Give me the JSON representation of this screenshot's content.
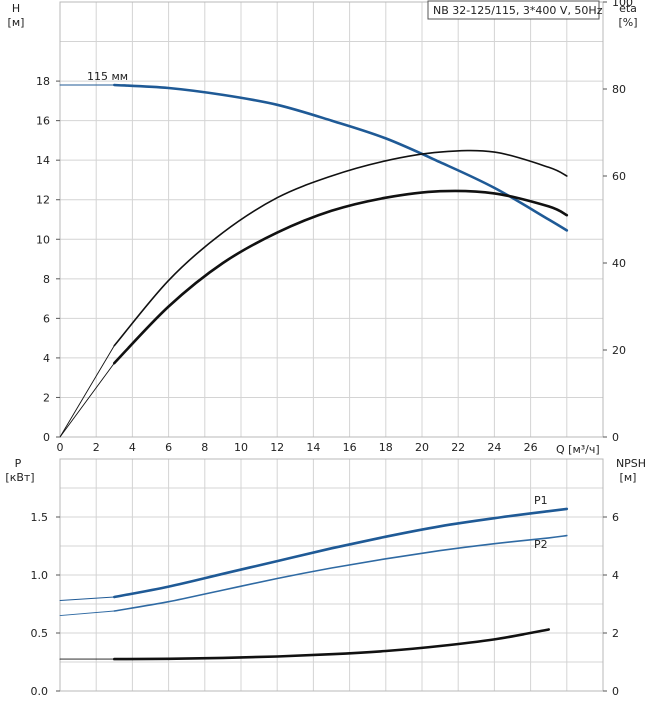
{
  "header": {
    "title_box": "NB 32-125/115, 3*400 V, 50Hz"
  },
  "top_chart": {
    "left_axis": {
      "name": "H",
      "unit": "[м]"
    },
    "right_axis": {
      "name": "eta",
      "unit": "[%]"
    }
  },
  "bottom_chart": {
    "left_axis": {
      "name": "P",
      "unit": "[кВт]"
    },
    "right_axis": {
      "name": "NPSH",
      "unit": "[м]"
    }
  },
  "shared_x_axis": {
    "label": "Q [м³/ч]"
  },
  "colors": {
    "head_curve": "#1f5a96",
    "p1_curve": "#1f5a96",
    "p2_curve": "#2f6aa3",
    "eta_curve": "#111111",
    "npsh_curve": "#111111",
    "grid": "#d4d4d4",
    "frame": "#b8b8b8",
    "series_label": "#1f5a96"
  },
  "chart_data": [
    {
      "type": "line",
      "panel": "top",
      "title": "",
      "xlabel": "Q [м³/ч]",
      "ylabel": "H [м]",
      "y2label": "eta [%]",
      "xlim": [
        0,
        30
      ],
      "ylim": [
        0,
        22
      ],
      "y2lim": [
        0,
        100
      ],
      "x_ticks": [
        0,
        2,
        4,
        6,
        8,
        10,
        12,
        14,
        16,
        18,
        20,
        22,
        24,
        26
      ],
      "y_ticks": [
        0,
        2,
        4,
        6,
        8,
        10,
        12,
        14,
        16,
        18
      ],
      "y2_ticks": [
        0,
        20,
        40,
        60,
        80,
        100
      ],
      "grid": true,
      "annotations": [
        {
          "text": "115 мм"
        }
      ],
      "series": [
        {
          "axis": "left",
          "style": "thin",
          "color_key": "head_curve",
          "x": [
            0,
            3
          ],
          "y": [
            17.8,
            17.8
          ]
        },
        {
          "name": "115 мм",
          "axis": "left",
          "style": "bold",
          "color_key": "head_curve",
          "x": [
            3,
            6,
            9,
            12,
            15,
            18,
            21,
            24,
            27,
            28
          ],
          "y": [
            17.8,
            17.65,
            17.3,
            16.8,
            16.0,
            15.1,
            13.9,
            12.6,
            11.0,
            10.45
          ]
        },
        {
          "axis": "right",
          "style": "medium",
          "color_key": "eta_curve",
          "x": [
            3,
            6,
            9,
            12,
            15,
            18,
            21,
            24,
            27,
            28
          ],
          "y": [
            21,
            36,
            47,
            55,
            60,
            63.5,
            65.5,
            65.5,
            62,
            60
          ]
        },
        {
          "axis": "right",
          "style": "thin",
          "color_key": "eta_curve",
          "x": [
            0,
            3
          ],
          "y": [
            0,
            21
          ]
        },
        {
          "axis": "right",
          "style": "bold",
          "color_key": "eta_curve",
          "x": [
            3,
            6,
            9,
            12,
            15,
            18,
            21,
            24,
            27,
            28
          ],
          "y": [
            17,
            30,
            40,
            47,
            52,
            55,
            56.5,
            56,
            53,
            51
          ]
        },
        {
          "axis": "right",
          "style": "thin",
          "color_key": "eta_curve",
          "x": [
            0,
            3
          ],
          "y": [
            0,
            17
          ]
        }
      ]
    },
    {
      "type": "line",
      "panel": "bottom",
      "title": "",
      "xlabel": "Q [м³/ч]",
      "ylabel": "P [кВт]",
      "y2label": "NPSH [м]",
      "xlim": [
        0,
        30
      ],
      "ylim": [
        0,
        2.0
      ],
      "y2lim": [
        0,
        8
      ],
      "y_ticks": [
        0.0,
        0.5,
        1.0,
        1.5
      ],
      "y_tick_labels": [
        "0.0",
        "0.5",
        "1.0",
        "1.5"
      ],
      "y2_ticks": [
        0,
        2,
        4,
        6
      ],
      "grid": true,
      "series": [
        {
          "axis": "left",
          "style": "thin",
          "color_key": "p1_curve",
          "x": [
            0,
            3
          ],
          "y": [
            0.78,
            0.81
          ]
        },
        {
          "name": "P1",
          "axis": "left",
          "style": "bold",
          "color_key": "p1_curve",
          "x": [
            3,
            6,
            9,
            12,
            15,
            18,
            21,
            24,
            27,
            28
          ],
          "y": [
            0.81,
            0.9,
            1.01,
            1.12,
            1.23,
            1.33,
            1.42,
            1.49,
            1.55,
            1.57
          ]
        },
        {
          "axis": "left",
          "style": "thin",
          "color_key": "p2_curve",
          "x": [
            0,
            3
          ],
          "y": [
            0.65,
            0.69
          ]
        },
        {
          "name": "P2",
          "axis": "left",
          "style": "medium",
          "color_key": "p2_curve",
          "x": [
            3,
            6,
            9,
            12,
            15,
            18,
            21,
            24,
            27,
            28
          ],
          "y": [
            0.69,
            0.77,
            0.87,
            0.97,
            1.06,
            1.14,
            1.21,
            1.27,
            1.32,
            1.34
          ]
        },
        {
          "axis": "right",
          "style": "thin",
          "color_key": "npsh_curve",
          "x": [
            0,
            3
          ],
          "y": [
            1.1,
            1.1
          ]
        },
        {
          "axis": "right",
          "style": "bold",
          "color_key": "npsh_curve",
          "x": [
            3,
            6,
            9,
            12,
            15,
            18,
            21,
            24,
            27
          ],
          "y": [
            1.1,
            1.11,
            1.14,
            1.19,
            1.27,
            1.38,
            1.55,
            1.78,
            2.12
          ]
        }
      ],
      "series_labels": [
        {
          "text": "P1",
          "series": "P1"
        },
        {
          "text": "P2",
          "series": "P2"
        }
      ]
    }
  ]
}
